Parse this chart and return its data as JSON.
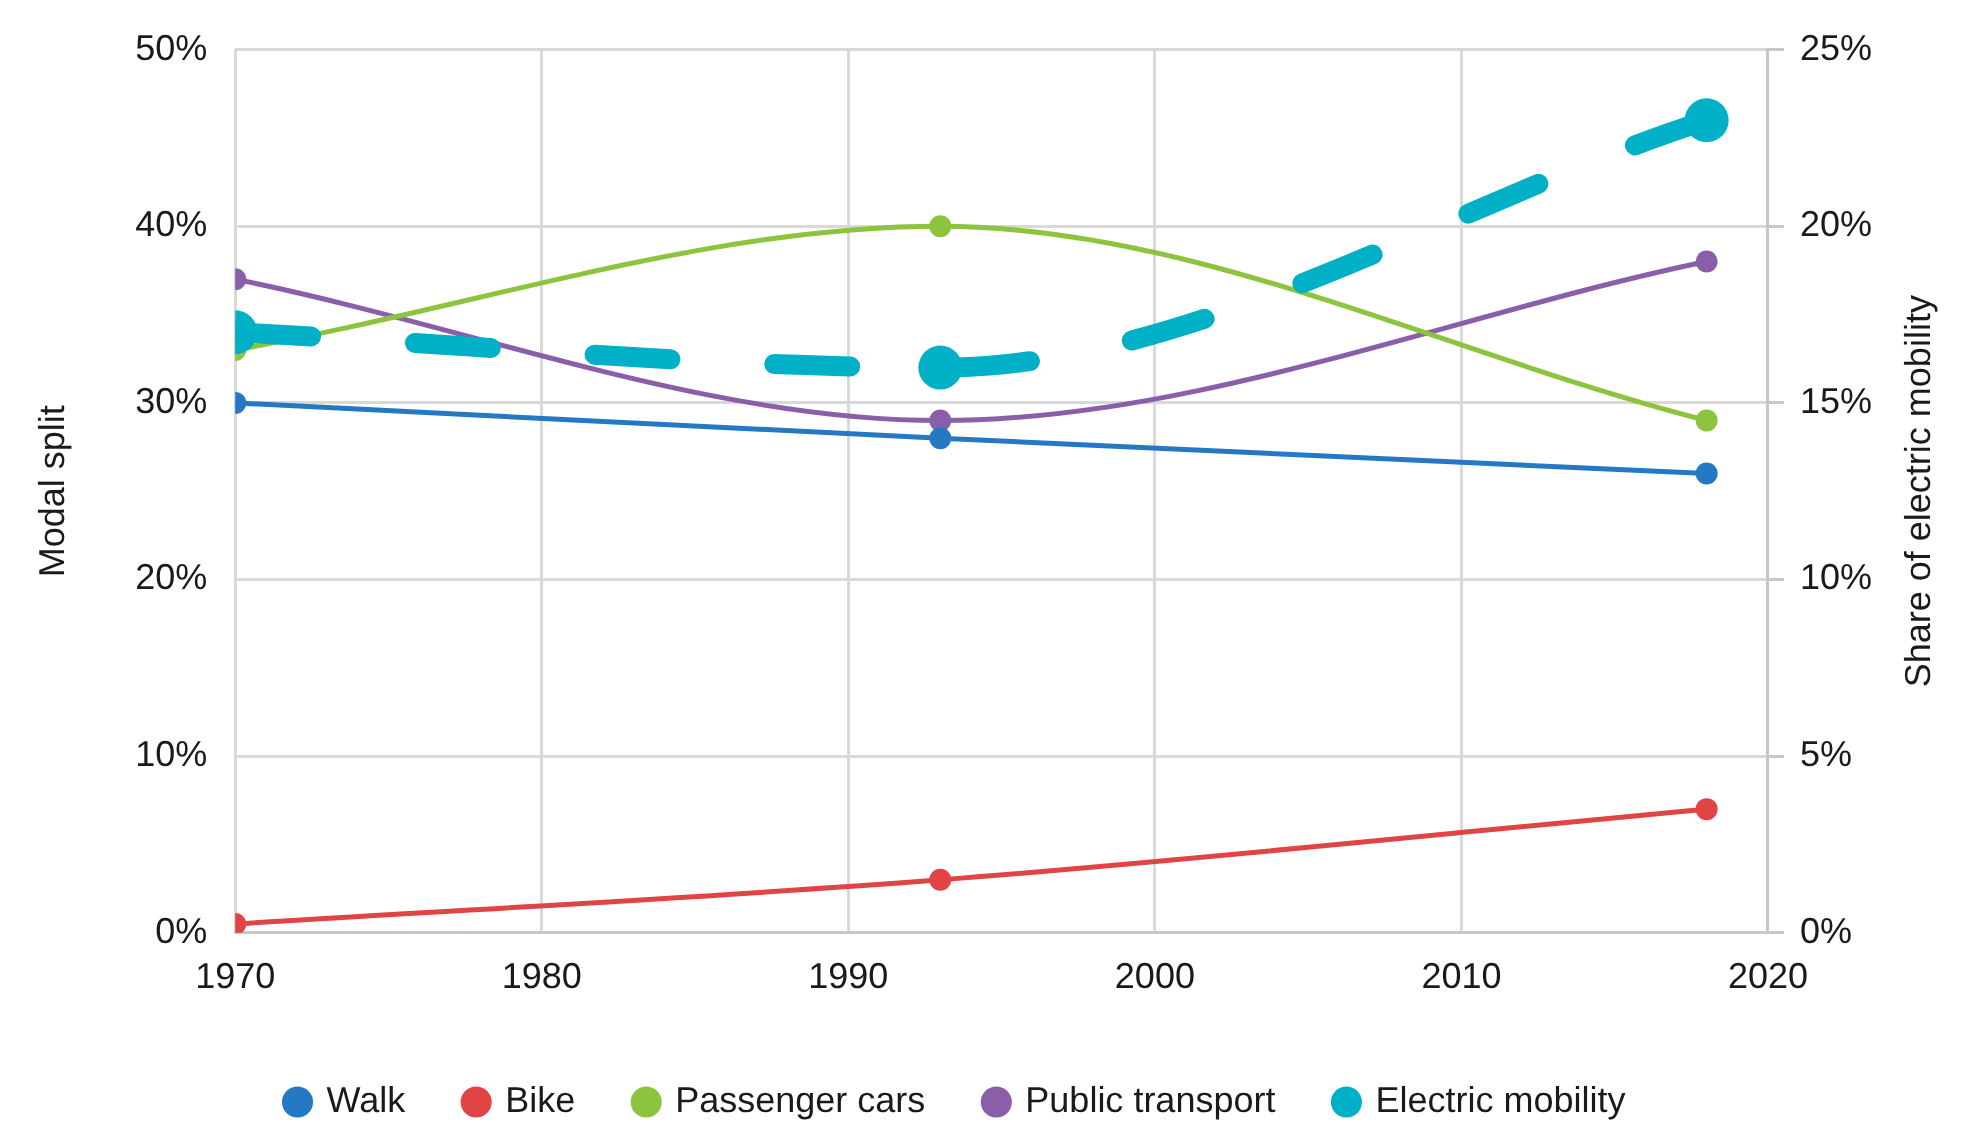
{
  "chart_data": {
    "type": "line",
    "ylabel": "Modal split",
    "y2label": "Share of electric mobility",
    "xlim": [
      1970,
      2020
    ],
    "xticks": [
      1970,
      1980,
      1990,
      2000,
      2010,
      2020
    ],
    "ylim": [
      0,
      50
    ],
    "yticks": [
      {
        "value": 0,
        "label": "0%"
      },
      {
        "value": 10,
        "label": "10%"
      },
      {
        "value": 20,
        "label": "20%"
      },
      {
        "value": 30,
        "label": "30%"
      },
      {
        "value": 40,
        "label": "40%"
      },
      {
        "value": 50,
        "label": "50%"
      }
    ],
    "y2lim": [
      0,
      25
    ],
    "y2ticks": [
      {
        "value": 0,
        "label": "0%"
      },
      {
        "value": 5,
        "label": "5%"
      },
      {
        "value": 10,
        "label": "10%"
      },
      {
        "value": 15,
        "label": "15%"
      },
      {
        "value": 20,
        "label": "20%"
      },
      {
        "value": 25,
        "label": "25%"
      }
    ],
    "x": [
      1970,
      1993,
      2018
    ],
    "series": [
      {
        "name": "Walk",
        "color": "#2478c4",
        "values": [
          30,
          28,
          26
        ]
      },
      {
        "name": "Bike",
        "color": "#e04444",
        "values": [
          0.5,
          3,
          7
        ]
      },
      {
        "name": "Passenger cars",
        "color": "#8cc43e",
        "values": [
          33,
          40,
          29
        ]
      },
      {
        "name": "Public transport",
        "color": "#8a5ea8",
        "values": [
          37,
          29,
          38
        ]
      },
      {
        "name": "Electric mobility",
        "color": "#00b0c6",
        "values": [
          17,
          16,
          23
        ],
        "axis": "y2",
        "line_style": "dashed"
      }
    ],
    "grid": true,
    "legend": "bottom",
    "marker": "circle",
    "line_style": "solid"
  }
}
